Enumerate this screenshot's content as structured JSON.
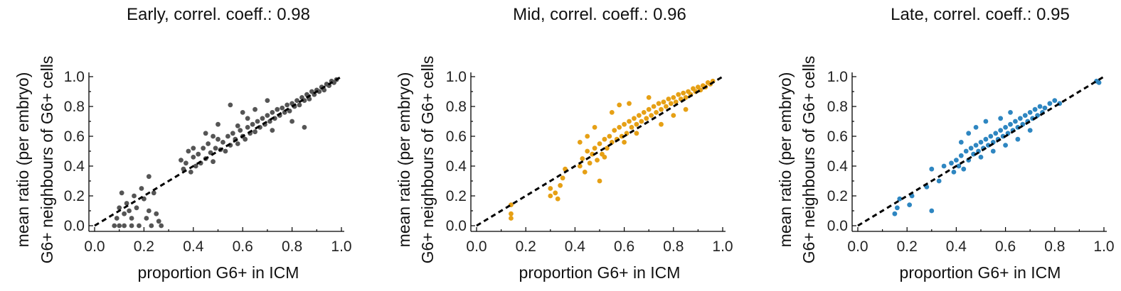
{
  "figure": {
    "panels": [
      {
        "id": "early",
        "title": "Early, correl. coeff.: 0.98",
        "xlabel": "proportion G6+ in ICM",
        "ylabel_line1": "mean ratio (per embryo)",
        "ylabel_line2": "G6+ neighbours of G6+ cells"
      },
      {
        "id": "mid",
        "title": "Mid, correl. coeff.: 0.96",
        "xlabel": "proportion G6+ in ICM",
        "ylabel_line1": "mean ratio (per embryo)",
        "ylabel_line2": "G6+ neighbours of G6+ cells"
      },
      {
        "id": "late",
        "title": "Late, correl. coeff.: 0.95",
        "xlabel": "proportion G6+ in ICM",
        "ylabel_line1": "mean ratio (per embryo)",
        "ylabel_line2": "G6+ neighbours of G6+ cells"
      }
    ]
  },
  "chart_data": [
    {
      "type": "scatter",
      "title": "Early, correl. coeff.: 0.98",
      "xlabel": "proportion G6+ in ICM",
      "ylabel": "mean ratio (per embryo) G6+ neighbours of G6+ cells",
      "xlim": [
        0.0,
        1.0
      ],
      "ylim": [
        0.0,
        1.0
      ],
      "xticks": [
        "0.0",
        "0.2",
        "0.4",
        "0.6",
        "0.8",
        "1.0"
      ],
      "yticks": [
        "0.0",
        "0.2",
        "0.4",
        "0.6",
        "0.8",
        "1.0"
      ],
      "color": "#555555",
      "reference_line": {
        "x": [
          0,
          1
        ],
        "y": [
          0,
          1
        ],
        "style": "dashed"
      },
      "grid": false,
      "series": [
        {
          "points": [
            [
              0.08,
              0.0
            ],
            [
              0.09,
              0.05
            ],
            [
              0.1,
              0.0
            ],
            [
              0.1,
              0.12
            ],
            [
              0.11,
              0.22
            ],
            [
              0.12,
              0.08
            ],
            [
              0.12,
              0.0
            ],
            [
              0.13,
              0.15
            ],
            [
              0.14,
              0.1
            ],
            [
              0.15,
              0.05
            ],
            [
              0.15,
              0.0
            ],
            [
              0.16,
              0.2
            ],
            [
              0.17,
              0.12
            ],
            [
              0.18,
              0.0
            ],
            [
              0.19,
              0.25
            ],
            [
              0.2,
              0.18
            ],
            [
              0.21,
              0.05
            ],
            [
              0.22,
              0.1
            ],
            [
              0.22,
              0.33
            ],
            [
              0.23,
              0.0
            ],
            [
              0.24,
              0.22
            ],
            [
              0.25,
              0.08
            ],
            [
              0.26,
              0.03
            ],
            [
              0.27,
              0.0
            ],
            [
              0.35,
              0.44
            ],
            [
              0.36,
              0.38
            ],
            [
              0.37,
              0.42
            ],
            [
              0.38,
              0.5
            ],
            [
              0.39,
              0.36
            ],
            [
              0.4,
              0.46
            ],
            [
              0.41,
              0.4
            ],
            [
              0.42,
              0.48
            ],
            [
              0.43,
              0.42
            ],
            [
              0.44,
              0.52
            ],
            [
              0.45,
              0.45
            ],
            [
              0.46,
              0.55
            ],
            [
              0.47,
              0.49
            ],
            [
              0.48,
              0.43
            ],
            [
              0.49,
              0.52
            ],
            [
              0.5,
              0.58
            ],
            [
              0.51,
              0.51
            ],
            [
              0.52,
              0.56
            ],
            [
              0.53,
              0.5
            ],
            [
              0.54,
              0.6
            ],
            [
              0.55,
              0.54
            ],
            [
              0.56,
              0.62
            ],
            [
              0.57,
              0.58
            ],
            [
              0.58,
              0.55
            ],
            [
              0.59,
              0.64
            ],
            [
              0.6,
              0.6
            ],
            [
              0.61,
              0.58
            ],
            [
              0.62,
              0.66
            ],
            [
              0.63,
              0.62
            ],
            [
              0.64,
              0.68
            ],
            [
              0.65,
              0.63
            ],
            [
              0.66,
              0.7
            ],
            [
              0.67,
              0.66
            ],
            [
              0.68,
              0.72
            ],
            [
              0.69,
              0.68
            ],
            [
              0.7,
              0.74
            ],
            [
              0.71,
              0.7
            ],
            [
              0.72,
              0.76
            ],
            [
              0.73,
              0.72
            ],
            [
              0.74,
              0.78
            ],
            [
              0.75,
              0.74
            ],
            [
              0.76,
              0.79
            ],
            [
              0.77,
              0.76
            ],
            [
              0.78,
              0.81
            ],
            [
              0.79,
              0.77
            ],
            [
              0.8,
              0.82
            ],
            [
              0.81,
              0.8
            ],
            [
              0.82,
              0.84
            ],
            [
              0.83,
              0.81
            ],
            [
              0.84,
              0.86
            ],
            [
              0.85,
              0.84
            ],
            [
              0.86,
              0.88
            ],
            [
              0.87,
              0.85
            ],
            [
              0.88,
              0.9
            ],
            [
              0.89,
              0.88
            ],
            [
              0.9,
              0.91
            ],
            [
              0.91,
              0.9
            ],
            [
              0.92,
              0.93
            ],
            [
              0.93,
              0.91
            ],
            [
              0.94,
              0.95
            ],
            [
              0.95,
              0.94
            ],
            [
              0.96,
              0.97
            ],
            [
              0.97,
              0.96
            ],
            [
              0.98,
              0.98
            ],
            [
              0.55,
              0.81
            ],
            [
              0.6,
              0.76
            ],
            [
              0.5,
              0.68
            ],
            [
              0.45,
              0.62
            ],
            [
              0.72,
              0.64
            ],
            [
              0.8,
              0.7
            ],
            [
              0.85,
              0.66
            ],
            [
              0.4,
              0.52
            ],
            [
              0.65,
              0.78
            ],
            [
              0.7,
              0.84
            ],
            [
              0.62,
              0.72
            ],
            [
              0.58,
              0.67
            ],
            [
              0.48,
              0.6
            ]
          ]
        }
      ]
    },
    {
      "type": "scatter",
      "title": "Mid, correl. coeff.: 0.96",
      "xlabel": "proportion G6+ in ICM",
      "ylabel": "mean ratio (per embryo) G6+ neighbours of G6+ cells",
      "xlim": [
        0.0,
        1.0
      ],
      "ylim": [
        0.0,
        1.0
      ],
      "xticks": [
        "0.0",
        "0.2",
        "0.4",
        "0.6",
        "0.8",
        "1.0"
      ],
      "yticks": [
        "0.0",
        "0.2",
        "0.4",
        "0.6",
        "0.8",
        "1.0"
      ],
      "color": "#E6A015",
      "reference_line": {
        "x": [
          0,
          1
        ],
        "y": [
          0,
          1
        ],
        "style": "dashed"
      },
      "grid": false,
      "series": [
        {
          "points": [
            [
              0.14,
              0.05
            ],
            [
              0.14,
              0.08
            ],
            [
              0.14,
              0.14
            ],
            [
              0.3,
              0.2
            ],
            [
              0.3,
              0.25
            ],
            [
              0.32,
              0.22
            ],
            [
              0.33,
              0.18
            ],
            [
              0.34,
              0.27
            ],
            [
              0.35,
              0.32
            ],
            [
              0.36,
              0.38
            ],
            [
              0.42,
              0.4
            ],
            [
              0.43,
              0.45
            ],
            [
              0.44,
              0.36
            ],
            [
              0.45,
              0.5
            ],
            [
              0.46,
              0.42
            ],
            [
              0.47,
              0.48
            ],
            [
              0.48,
              0.52
            ],
            [
              0.49,
              0.44
            ],
            [
              0.5,
              0.55
            ],
            [
              0.5,
              0.3
            ],
            [
              0.51,
              0.48
            ],
            [
              0.52,
              0.58
            ],
            [
              0.53,
              0.52
            ],
            [
              0.54,
              0.6
            ],
            [
              0.55,
              0.56
            ],
            [
              0.56,
              0.64
            ],
            [
              0.57,
              0.58
            ],
            [
              0.58,
              0.66
            ],
            [
              0.59,
              0.6
            ],
            [
              0.6,
              0.68
            ],
            [
              0.61,
              0.62
            ],
            [
              0.62,
              0.7
            ],
            [
              0.63,
              0.66
            ],
            [
              0.64,
              0.72
            ],
            [
              0.65,
              0.68
            ],
            [
              0.66,
              0.74
            ],
            [
              0.67,
              0.7
            ],
            [
              0.68,
              0.76
            ],
            [
              0.69,
              0.72
            ],
            [
              0.7,
              0.78
            ],
            [
              0.71,
              0.74
            ],
            [
              0.72,
              0.8
            ],
            [
              0.73,
              0.76
            ],
            [
              0.74,
              0.82
            ],
            [
              0.75,
              0.78
            ],
            [
              0.76,
              0.83
            ],
            [
              0.77,
              0.8
            ],
            [
              0.78,
              0.85
            ],
            [
              0.79,
              0.82
            ],
            [
              0.8,
              0.86
            ],
            [
              0.81,
              0.83
            ],
            [
              0.82,
              0.88
            ],
            [
              0.83,
              0.85
            ],
            [
              0.84,
              0.89
            ],
            [
              0.85,
              0.86
            ],
            [
              0.86,
              0.9
            ],
            [
              0.87,
              0.88
            ],
            [
              0.88,
              0.92
            ],
            [
              0.89,
              0.9
            ],
            [
              0.9,
              0.93
            ],
            [
              0.91,
              0.91
            ],
            [
              0.92,
              0.94
            ],
            [
              0.93,
              0.93
            ],
            [
              0.94,
              0.96
            ],
            [
              0.95,
              0.95
            ],
            [
              0.96,
              0.97
            ],
            [
              0.55,
              0.76
            ],
            [
              0.58,
              0.81
            ],
            [
              0.62,
              0.82
            ],
            [
              0.48,
              0.66
            ],
            [
              0.45,
              0.6
            ],
            [
              0.7,
              0.86
            ],
            [
              0.65,
              0.62
            ],
            [
              0.75,
              0.68
            ],
            [
              0.8,
              0.74
            ],
            [
              0.85,
              0.78
            ],
            [
              0.6,
              0.56
            ],
            [
              0.52,
              0.46
            ],
            [
              0.42,
              0.56
            ]
          ]
        }
      ]
    },
    {
      "type": "scatter",
      "title": "Late, correl. coeff.: 0.95",
      "xlabel": "proportion G6+ in ICM",
      "ylabel": "mean ratio (per embryo) G6+ neighbours of G6+ cells",
      "xlim": [
        0.0,
        1.0
      ],
      "ylim": [
        0.0,
        1.0
      ],
      "xticks": [
        "0.0",
        "0.2",
        "0.4",
        "0.6",
        "0.8",
        "1.0"
      ],
      "yticks": [
        "0.0",
        "0.2",
        "0.4",
        "0.6",
        "0.8",
        "1.0"
      ],
      "color": "#2E86C1",
      "reference_line": {
        "x": [
          0,
          1
        ],
        "y": [
          0,
          1
        ],
        "style": "dashed"
      },
      "grid": false,
      "series": [
        {
          "points": [
            [
              0.15,
              0.08
            ],
            [
              0.16,
              0.12
            ],
            [
              0.17,
              0.18
            ],
            [
              0.21,
              0.14
            ],
            [
              0.22,
              0.2
            ],
            [
              0.28,
              0.26
            ],
            [
              0.3,
              0.1
            ],
            [
              0.3,
              0.38
            ],
            [
              0.33,
              0.3
            ],
            [
              0.35,
              0.4
            ],
            [
              0.38,
              0.42
            ],
            [
              0.39,
              0.36
            ],
            [
              0.4,
              0.44
            ],
            [
              0.41,
              0.4
            ],
            [
              0.42,
              0.47
            ],
            [
              0.43,
              0.38
            ],
            [
              0.44,
              0.5
            ],
            [
              0.45,
              0.44
            ],
            [
              0.46,
              0.52
            ],
            [
              0.47,
              0.48
            ],
            [
              0.48,
              0.54
            ],
            [
              0.49,
              0.5
            ],
            [
              0.5,
              0.56
            ],
            [
              0.51,
              0.52
            ],
            [
              0.52,
              0.58
            ],
            [
              0.53,
              0.54
            ],
            [
              0.54,
              0.6
            ],
            [
              0.55,
              0.56
            ],
            [
              0.56,
              0.62
            ],
            [
              0.57,
              0.58
            ],
            [
              0.58,
              0.64
            ],
            [
              0.59,
              0.6
            ],
            [
              0.6,
              0.66
            ],
            [
              0.61,
              0.62
            ],
            [
              0.62,
              0.68
            ],
            [
              0.63,
              0.64
            ],
            [
              0.64,
              0.7
            ],
            [
              0.65,
              0.66
            ],
            [
              0.66,
              0.72
            ],
            [
              0.67,
              0.68
            ],
            [
              0.68,
              0.74
            ],
            [
              0.69,
              0.7
            ],
            [
              0.7,
              0.76
            ],
            [
              0.71,
              0.72
            ],
            [
              0.72,
              0.78
            ],
            [
              0.73,
              0.74
            ],
            [
              0.74,
              0.8
            ],
            [
              0.75,
              0.76
            ],
            [
              0.76,
              0.79
            ],
            [
              0.78,
              0.82
            ],
            [
              0.8,
              0.84
            ],
            [
              0.82,
              0.82
            ],
            [
              0.45,
              0.62
            ],
            [
              0.48,
              0.66
            ],
            [
              0.52,
              0.7
            ],
            [
              0.55,
              0.5
            ],
            [
              0.6,
              0.54
            ],
            [
              0.65,
              0.58
            ],
            [
              0.5,
              0.46
            ],
            [
              0.42,
              0.56
            ],
            [
              0.58,
              0.72
            ],
            [
              0.62,
              0.76
            ],
            [
              0.7,
              0.64
            ],
            [
              0.97,
              0.97
            ],
            [
              0.98,
              0.96
            ]
          ]
        }
      ]
    }
  ]
}
